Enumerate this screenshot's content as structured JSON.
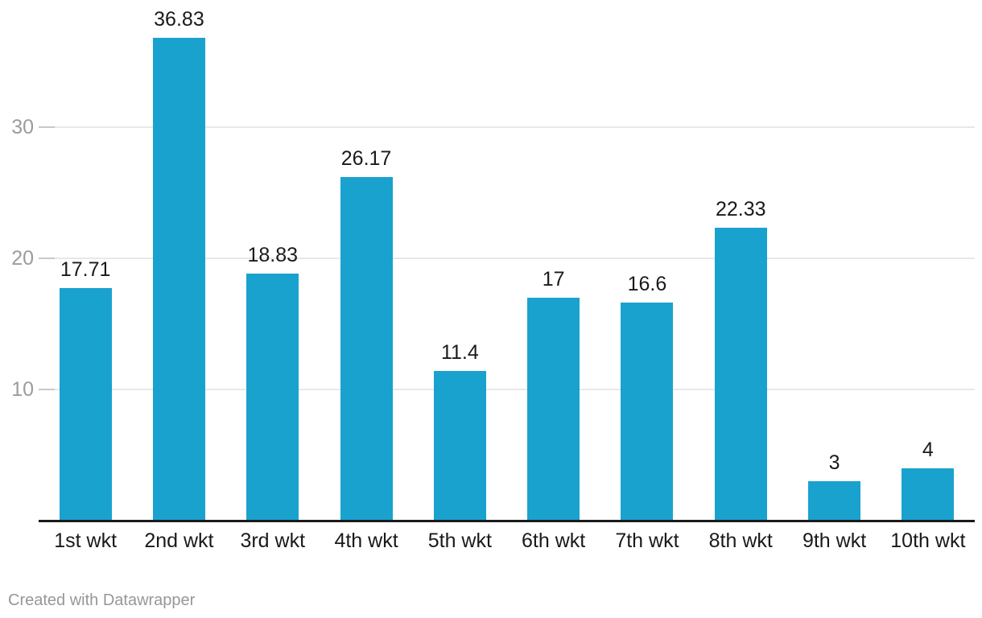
{
  "chart_data": {
    "type": "bar",
    "categories": [
      "1st wkt",
      "2nd wkt",
      "3rd wkt",
      "4th wkt",
      "5th wkt",
      "6th wkt",
      "7th wkt",
      "8th wkt",
      "9th wkt",
      "10th wkt"
    ],
    "values": [
      17.71,
      36.83,
      18.83,
      26.17,
      11.4,
      17,
      16.6,
      22.33,
      3,
      4
    ],
    "value_labels": [
      "17.71",
      "36.83",
      "18.83",
      "26.17",
      "11.4",
      "17",
      "16.6",
      "22.33",
      "3",
      "4"
    ],
    "title": "",
    "xlabel": "",
    "ylabel": "",
    "ylim": [
      0,
      39.7
    ],
    "yticks": [
      10,
      20,
      30
    ],
    "grid": true,
    "legend_position": "none",
    "bar_color": "#1aa2cf"
  },
  "colors": {
    "bar": "#1aa2cf",
    "gridline": "#e8e8e8",
    "gridline_tick": "#c9c9c9",
    "baseline": "#1a1a1a",
    "value_label": "#1a1a1a",
    "x_label": "#1a1a1a",
    "y_label": "#9c9c9c",
    "footer": "#979797",
    "background": "#ffffff"
  },
  "footer": {
    "attribution": "Created with Datawrapper"
  }
}
